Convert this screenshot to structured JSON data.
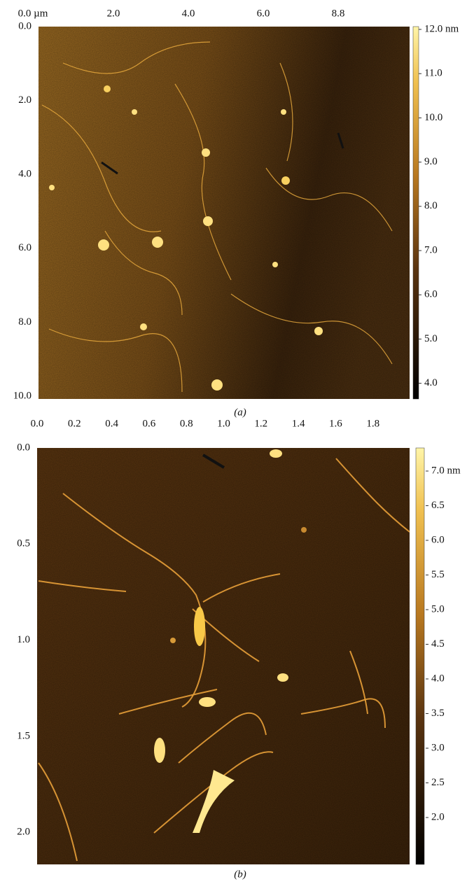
{
  "panels": [
    {
      "caption": "(a)",
      "x_ticks": [
        "0.0 µm",
        "2.0",
        "4.0",
        "6.0",
        "8.8"
      ],
      "y_ticks": [
        "0.0",
        "2.0",
        "4.0",
        "6.0",
        "8.0",
        "10.0"
      ],
      "colorbar_ticks": [
        "12.0 nm",
        "11.0",
        "10.0",
        "9.0",
        "8.0",
        "7.0",
        "6.0",
        "5.0",
        "4.0"
      ]
    },
    {
      "caption": "(b)",
      "x_ticks": [
        "0.0",
        "0.2",
        "0.4",
        "0.6",
        "0.8",
        "1.0",
        "1.2",
        "1.4",
        "1.6",
        "1.8"
      ],
      "y_ticks": [
        "0.0",
        "0.5",
        "1.0",
        "1.5",
        "2.0"
      ],
      "colorbar_ticks": [
        "7.0 nm",
        "6.5",
        "6.0",
        "5.5",
        "5.0",
        "4.5",
        "4.0",
        "3.5",
        "3.0",
        "2.5",
        "2.0"
      ]
    }
  ]
}
